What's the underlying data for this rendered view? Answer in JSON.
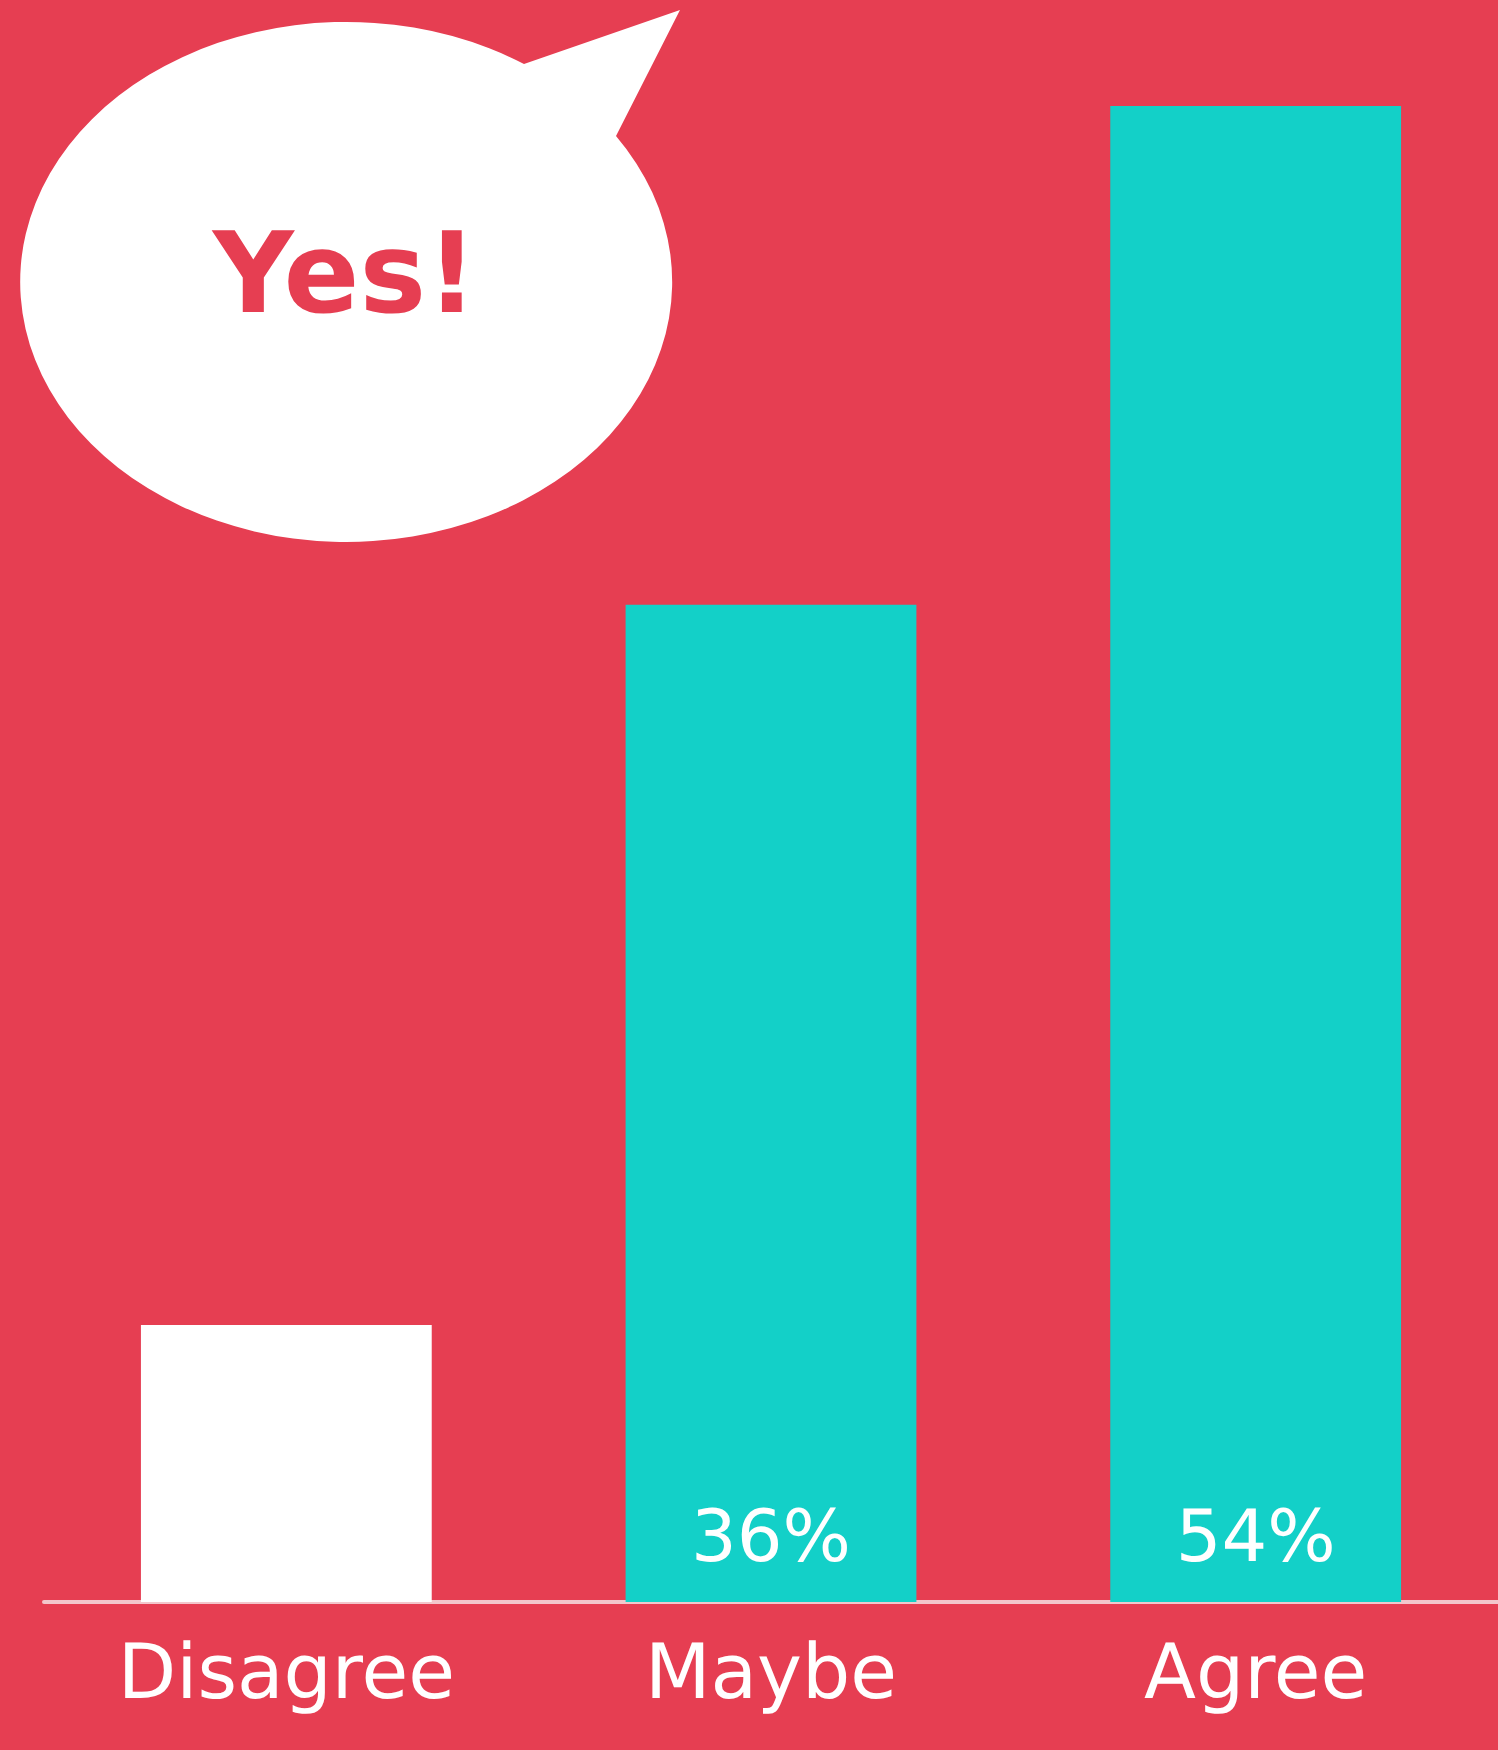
{
  "chart_data": {
    "type": "bar",
    "categories": [
      "Disagree",
      "Maybe",
      "Agree"
    ],
    "values": [
      10,
      36,
      54
    ],
    "colors": [
      "#ffffff",
      "#13d0c8",
      "#13d0c8"
    ],
    "value_labels": [
      null,
      "36%",
      "54%"
    ],
    "annotations": [
      "Yes!"
    ]
  }
}
